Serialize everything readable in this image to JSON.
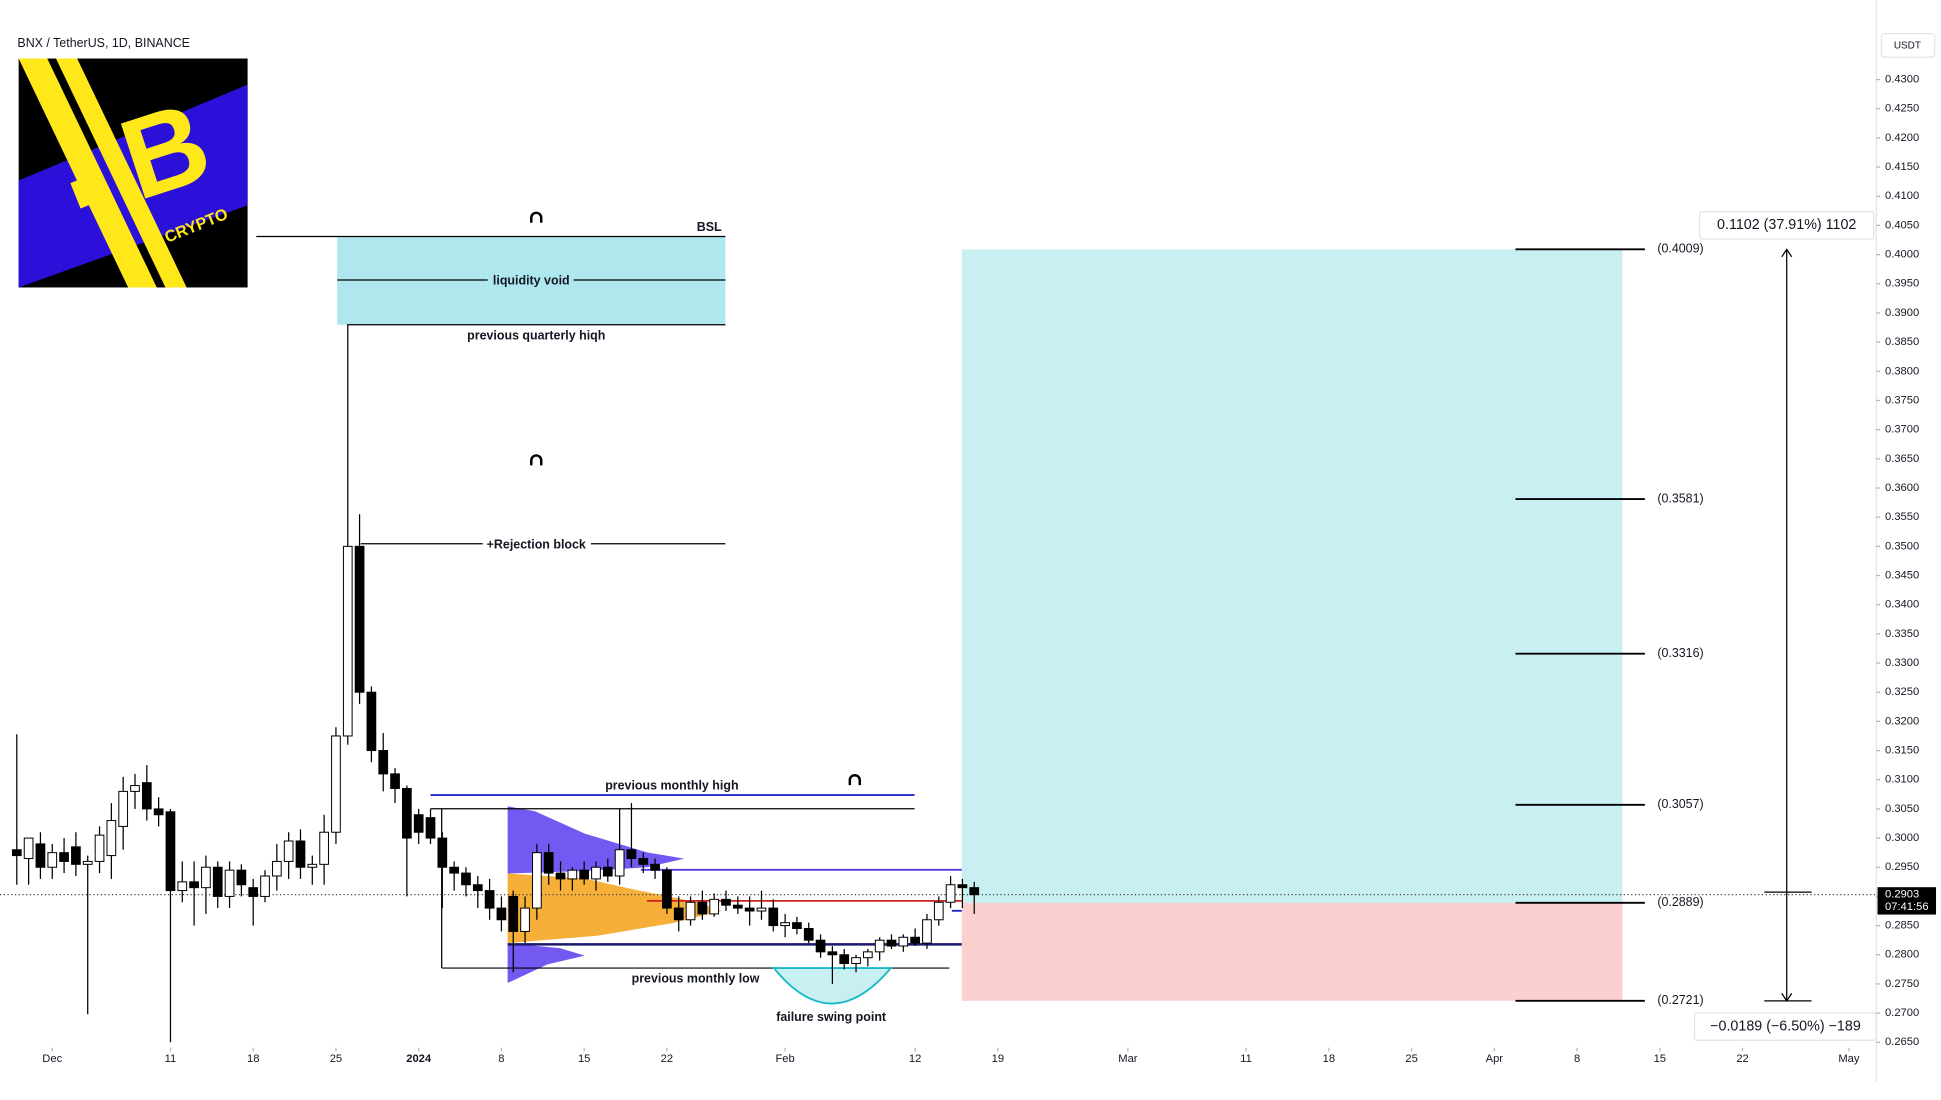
{
  "chart_data": {
    "type": "candlestick",
    "title": "BNX / TetherUS, 1D, BINANCE",
    "currency": "USDT",
    "logo": {
      "letter": "B",
      "text": "CRYPTO"
    },
    "up_color": "#ffffff",
    "down_color": "#000000",
    "x": [
      "2023-11-28",
      "2023-11-29",
      "2023-11-30",
      "2023-12-01",
      "2023-12-02",
      "2023-12-03",
      "2023-12-04",
      "2023-12-05",
      "2023-12-06",
      "2023-12-07",
      "2023-12-08",
      "2023-12-09",
      "2023-12-10",
      "2023-12-11",
      "2023-12-12",
      "2023-12-13",
      "2023-12-14",
      "2023-12-15",
      "2023-12-16",
      "2023-12-17",
      "2023-12-18",
      "2023-12-19",
      "2023-12-20",
      "2023-12-21",
      "2023-12-22",
      "2023-12-23",
      "2023-12-24",
      "2023-12-25",
      "2023-12-26",
      "2023-12-27",
      "2023-12-28",
      "2023-12-29",
      "2023-12-30",
      "2023-12-31",
      "2024-01-01",
      "2024-01-02",
      "2024-01-03",
      "2024-01-04",
      "2024-01-05",
      "2024-01-06",
      "2024-01-07",
      "2024-01-08",
      "2024-01-09",
      "2024-01-10",
      "2024-01-11",
      "2024-01-12",
      "2024-01-13",
      "2024-01-14",
      "2024-01-15",
      "2024-01-16",
      "2024-01-17",
      "2024-01-18",
      "2024-01-19",
      "2024-01-20",
      "2024-01-21",
      "2024-01-22",
      "2024-01-23",
      "2024-01-24",
      "2024-01-25",
      "2024-01-26",
      "2024-01-27",
      "2024-01-28",
      "2024-01-29",
      "2024-01-30",
      "2024-01-31",
      "2024-02-01",
      "2024-02-02",
      "2024-02-03",
      "2024-02-04",
      "2024-02-05",
      "2024-02-06",
      "2024-02-07",
      "2024-02-08",
      "2024-02-09",
      "2024-02-10",
      "2024-02-11",
      "2024-02-12",
      "2024-02-13",
      "2024-02-14",
      "2024-02-15",
      "2024-02-16",
      "2024-02-17"
    ],
    "open": [
      0.298,
      0.2965,
      0.299,
      0.295,
      0.2975,
      0.2985,
      0.2955,
      0.296,
      0.297,
      0.302,
      0.308,
      0.3095,
      0.305,
      0.3045,
      0.291,
      0.2925,
      0.2915,
      0.295,
      0.29,
      0.2945,
      0.2915,
      0.29,
      0.2935,
      0.296,
      0.2995,
      0.295,
      0.2955,
      0.301,
      0.3175,
      0.35,
      0.325,
      0.315,
      0.311,
      0.3085,
      0.304,
      0.3035,
      0.3,
      0.295,
      0.294,
      0.292,
      0.291,
      0.288,
      0.29,
      0.284,
      0.288,
      0.2975,
      0.294,
      0.293,
      0.2945,
      0.293,
      0.295,
      0.2935,
      0.298,
      0.2965,
      0.2955,
      0.2945,
      0.288,
      0.286,
      0.289,
      0.287,
      0.2895,
      0.2885,
      0.288,
      0.2875,
      0.288,
      0.285,
      0.2855,
      0.2845,
      0.2825,
      0.2805,
      0.28,
      0.2785,
      0.2795,
      0.2805,
      0.2825,
      0.2815,
      0.283,
      0.282,
      0.286,
      0.289,
      0.292,
      0.2915
    ],
    "high": [
      0.3178,
      0.3,
      0.301,
      0.299,
      0.3,
      0.301,
      0.297,
      0.302,
      0.306,
      0.3105,
      0.311,
      0.3125,
      0.307,
      0.305,
      0.296,
      0.296,
      0.297,
      0.296,
      0.296,
      0.2955,
      0.293,
      0.2945,
      0.299,
      0.301,
      0.3015,
      0.297,
      0.304,
      0.319,
      0.388,
      0.3555,
      0.326,
      0.318,
      0.312,
      0.309,
      0.305,
      0.305,
      0.301,
      0.296,
      0.295,
      0.2935,
      0.293,
      0.29,
      0.291,
      0.29,
      0.299,
      0.299,
      0.296,
      0.295,
      0.296,
      0.296,
      0.2965,
      0.305,
      0.306,
      0.2975,
      0.2965,
      0.295,
      0.29,
      0.29,
      0.291,
      0.2905,
      0.291,
      0.29,
      0.29,
      0.291,
      0.2895,
      0.287,
      0.2865,
      0.2855,
      0.2835,
      0.2815,
      0.281,
      0.28,
      0.281,
      0.283,
      0.2835,
      0.2835,
      0.2845,
      0.287,
      0.29,
      0.2935,
      0.293,
      0.2925
    ],
    "low": [
      0.292,
      0.292,
      0.293,
      0.293,
      0.294,
      0.2935,
      0.2698,
      0.294,
      0.293,
      0.298,
      0.305,
      0.303,
      0.302,
      0.265,
      0.289,
      0.285,
      0.287,
      0.288,
      0.288,
      0.29,
      0.285,
      0.289,
      0.291,
      0.293,
      0.293,
      0.292,
      0.292,
      0.299,
      0.316,
      0.323,
      0.313,
      0.308,
      0.306,
      0.29,
      0.299,
      0.299,
      0.288,
      0.291,
      0.29,
      0.288,
      0.286,
      0.284,
      0.277,
      0.282,
      0.286,
      0.292,
      0.291,
      0.291,
      0.292,
      0.291,
      0.2925,
      0.292,
      0.295,
      0.294,
      0.293,
      0.287,
      0.284,
      0.285,
      0.286,
      0.2865,
      0.2875,
      0.287,
      0.285,
      0.286,
      0.284,
      0.283,
      0.2835,
      0.282,
      0.2795,
      0.275,
      0.2775,
      0.277,
      0.278,
      0.279,
      0.281,
      0.2805,
      0.2815,
      0.281,
      0.285,
      0.288,
      0.288,
      0.287
    ],
    "close": [
      0.297,
      0.3,
      0.295,
      0.2975,
      0.296,
      0.2955,
      0.296,
      0.3005,
      0.303,
      0.308,
      0.309,
      0.305,
      0.304,
      0.291,
      0.2925,
      0.2915,
      0.295,
      0.29,
      0.2945,
      0.292,
      0.29,
      0.2935,
      0.296,
      0.2995,
      0.295,
      0.2955,
      0.301,
      0.3175,
      0.35,
      0.325,
      0.315,
      0.311,
      0.3085,
      0.3,
      0.301,
      0.3,
      0.295,
      0.294,
      0.292,
      0.291,
      0.288,
      0.286,
      0.284,
      0.288,
      0.2975,
      0.294,
      0.293,
      0.2945,
      0.293,
      0.295,
      0.2935,
      0.298,
      0.2965,
      0.2955,
      0.2945,
      0.288,
      0.286,
      0.289,
      0.287,
      0.2895,
      0.2885,
      0.288,
      0.2875,
      0.288,
      0.285,
      0.2855,
      0.2845,
      0.2825,
      0.2805,
      0.28,
      0.2785,
      0.2795,
      0.2805,
      0.2825,
      0.2815,
      0.283,
      0.282,
      0.286,
      0.289,
      0.292,
      0.2915,
      0.2903
    ],
    "last_price": 0.2903,
    "countdown": "07:41:56",
    "xlim": [
      "2023-11-27",
      "2024-05-03"
    ],
    "xticks": [
      {
        "value": "2023-12-01",
        "label": "Dec"
      },
      {
        "value": "2023-12-11",
        "label": "11"
      },
      {
        "value": "2023-12-18",
        "label": "18"
      },
      {
        "value": "2023-12-25",
        "label": "25"
      },
      {
        "value": "2024-01-01",
        "label": "2024"
      },
      {
        "value": "2024-01-08",
        "label": "8"
      },
      {
        "value": "2024-01-15",
        "label": "15"
      },
      {
        "value": "2024-01-22",
        "label": "22"
      },
      {
        "value": "2024-02-01",
        "label": "Feb"
      },
      {
        "value": "2024-02-12",
        "label": "12"
      },
      {
        "value": "2024-02-19",
        "label": "19"
      },
      {
        "value": "2024-03-01",
        "label": "Mar"
      },
      {
        "value": "2024-03-11",
        "label": "11"
      },
      {
        "value": "2024-03-18",
        "label": "18"
      },
      {
        "value": "2024-03-25",
        "label": "25"
      },
      {
        "value": "2024-04-01",
        "label": "Apr"
      },
      {
        "value": "2024-04-08",
        "label": "8"
      },
      {
        "value": "2024-04-15",
        "label": "15"
      },
      {
        "value": "2024-04-22",
        "label": "22"
      },
      {
        "value": "2024-05-01",
        "label": "May"
      }
    ],
    "ylim": [
      0.2645,
      0.4351
    ],
    "yticks": [
      {
        "value": 0.265,
        "label": "0.2650"
      },
      {
        "value": 0.27,
        "label": "0.2700"
      },
      {
        "value": 0.275,
        "label": "0.2750"
      },
      {
        "value": 0.28,
        "label": "0.2800"
      },
      {
        "value": 0.285,
        "label": "0.2850"
      },
      {
        "value": 0.29,
        "label": "0.2900"
      },
      {
        "value": 0.295,
        "label": "0.2950"
      },
      {
        "value": 0.3,
        "label": "0.3000"
      },
      {
        "value": 0.305,
        "label": "0.3050"
      },
      {
        "value": 0.31,
        "label": "0.3100"
      },
      {
        "value": 0.315,
        "label": "0.3150"
      },
      {
        "value": 0.32,
        "label": "0.3200"
      },
      {
        "value": 0.325,
        "label": "0.3250"
      },
      {
        "value": 0.33,
        "label": "0.3300"
      },
      {
        "value": 0.335,
        "label": "0.3350"
      },
      {
        "value": 0.34,
        "label": "0.3400"
      },
      {
        "value": 0.345,
        "label": "0.3450"
      },
      {
        "value": 0.35,
        "label": "0.3500"
      },
      {
        "value": 0.355,
        "label": "0.3550"
      },
      {
        "value": 0.36,
        "label": "0.3600"
      },
      {
        "value": 0.365,
        "label": "0.3650"
      },
      {
        "value": 0.37,
        "label": "0.3700"
      },
      {
        "value": 0.375,
        "label": "0.3750"
      },
      {
        "value": 0.38,
        "label": "0.3800"
      },
      {
        "value": 0.385,
        "label": "0.3850"
      },
      {
        "value": 0.39,
        "label": "0.3900"
      },
      {
        "value": 0.395,
        "label": "0.3950"
      },
      {
        "value": 0.4,
        "label": "0.4000"
      },
      {
        "value": 0.405,
        "label": "0.4050"
      },
      {
        "value": 0.41,
        "label": "0.4100"
      },
      {
        "value": 0.415,
        "label": "0.4150"
      },
      {
        "value": 0.42,
        "label": "0.4200"
      },
      {
        "value": 0.425,
        "label": "0.4250"
      },
      {
        "value": 0.43,
        "label": "0.4300"
      }
    ],
    "levels": [
      {
        "value": 0.4009,
        "label": "(0.4009)"
      },
      {
        "value": 0.3581,
        "label": "(0.3581)"
      },
      {
        "value": 0.3316,
        "label": "(0.3316)"
      },
      {
        "value": 0.3057,
        "label": "(0.3057)"
      },
      {
        "value": 0.2889,
        "label": "(0.2889)"
      },
      {
        "value": 0.2721,
        "label": "(0.2721)"
      }
    ],
    "measure_up": "0.1102 (37.91%) 1102",
    "measure_down": "−0.0189 (−6.50%) −189",
    "annotations": {
      "bsl": "BSL",
      "void": "liquidity void",
      "pqh": "previous quarterly hiqh",
      "rejection": "+Rejection block",
      "pmh": "previous monthly high",
      "pml": "previous monthly low",
      "swing": "failure swing point"
    }
  }
}
